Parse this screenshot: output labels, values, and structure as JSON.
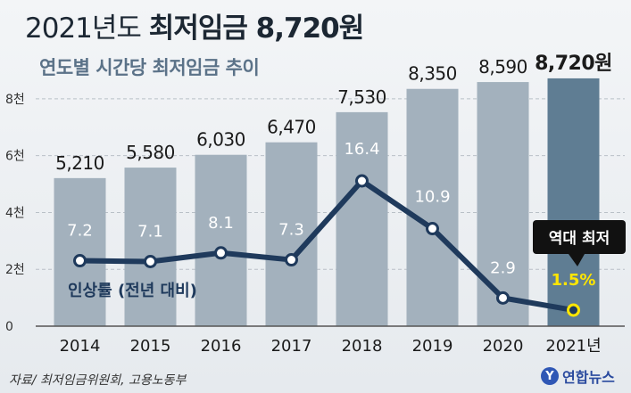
{
  "header": {
    "title_prefix": "2021년도",
    "title_main": "최저임금 8,720원",
    "subtitle": "연도별 시간당 최저임금 추이"
  },
  "footer": {
    "source": "자료/ 최저임금위원회, 고용노동부",
    "logo_text": "연합뉴스",
    "logo_mark": "Y"
  },
  "chart_data": {
    "type": "bar",
    "categories": [
      "2014",
      "2015",
      "2016",
      "2017",
      "2018",
      "2019",
      "2020",
      "2021년"
    ],
    "series": [
      {
        "values": [
          5210,
          5580,
          6030,
          6470,
          7530,
          8350,
          8590,
          8720
        ],
        "labels": [
          "5,210",
          "5,580",
          "6,030",
          "6,470",
          "7,530",
          "8,350",
          "8,590",
          "8,720원"
        ],
        "color": "#a3b1bd",
        "highlight_color": "#5f7d93"
      },
      {
        "name": "인상률 (전년 대비)",
        "type": "line",
        "values": [
          7.2,
          7.1,
          8.1,
          7.3,
          16.4,
          10.9,
          2.9,
          1.5
        ],
        "labels": [
          "7.2",
          "7.1",
          "8.1",
          "7.3",
          "16.4",
          "10.9",
          "2.9",
          "1.5%"
        ],
        "color": "#1f3a5c",
        "highlight_color": "#ffe600"
      }
    ],
    "ylim": [
      0,
      9000
    ],
    "yticks": [
      0,
      2000,
      4000,
      6000,
      8000
    ],
    "ytick_labels": [
      "0",
      "2천",
      "4천",
      "6천",
      "8천"
    ],
    "rate_range": [
      0,
      17.5
    ],
    "grid": true,
    "annotation": "역대 최저"
  }
}
